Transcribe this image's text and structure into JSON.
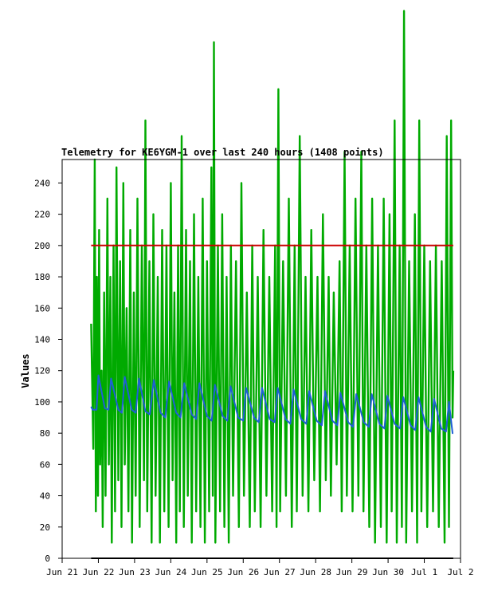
{
  "chart_data": {
    "type": "line",
    "title": "Telemetry for KE6YGM-1 over last 240 hours (1408 points)",
    "ylabel": "Values",
    "xlabel": "",
    "ylim": [
      0,
      255
    ],
    "yticks": [
      0,
      20,
      40,
      60,
      80,
      100,
      120,
      140,
      160,
      180,
      200,
      220,
      240
    ],
    "xlim": [
      0,
      11
    ],
    "xticks": [
      {
        "label": "Jun 21",
        "x": 0
      },
      {
        "label": "Jun 22",
        "x": 1
      },
      {
        "label": "Jun 23",
        "x": 2
      },
      {
        "label": "Jun 24",
        "x": 3
      },
      {
        "label": "Jun 25",
        "x": 4
      },
      {
        "label": "Jun 26",
        "x": 5
      },
      {
        "label": "Jun 27",
        "x": 6
      },
      {
        "label": "Jun 28",
        "x": 7
      },
      {
        "label": "Jun 29",
        "x": 8
      },
      {
        "label": "Jun 30",
        "x": 9
      },
      {
        "label": "Jul 1",
        "x": 10
      },
      {
        "label": "Jul 2",
        "x": 11
      }
    ],
    "grid": false,
    "series": [
      {
        "name": "",
        "color": "#00aa00",
        "style": "noisy",
        "values": [
          [
            0.8,
            150
          ],
          [
            0.86,
            70
          ],
          [
            0.9,
            255
          ],
          [
            0.93,
            30
          ],
          [
            0.96,
            180
          ],
          [
            0.99,
            40
          ],
          [
            1.02,
            210
          ],
          [
            1.05,
            60
          ],
          [
            1.09,
            120
          ],
          [
            1.12,
            20
          ],
          [
            1.16,
            170
          ],
          [
            1.2,
            40
          ],
          [
            1.25,
            230
          ],
          [
            1.29,
            60
          ],
          [
            1.33,
            180
          ],
          [
            1.37,
            10
          ],
          [
            1.42,
            200
          ],
          [
            1.46,
            30
          ],
          [
            1.5,
            250
          ],
          [
            1.55,
            50
          ],
          [
            1.6,
            190
          ],
          [
            1.64,
            20
          ],
          [
            1.69,
            240
          ],
          [
            1.73,
            60
          ],
          [
            1.78,
            160
          ],
          [
            1.83,
            30
          ],
          [
            1.88,
            210
          ],
          [
            1.93,
            10
          ],
          [
            1.98,
            170
          ],
          [
            2.03,
            40
          ],
          [
            2.08,
            230
          ],
          [
            2.14,
            20
          ],
          [
            2.2,
            200
          ],
          [
            2.26,
            50
          ],
          [
            2.3,
            280
          ],
          [
            2.35,
            30
          ],
          [
            2.41,
            190
          ],
          [
            2.47,
            10
          ],
          [
            2.52,
            220
          ],
          [
            2.58,
            40
          ],
          [
            2.64,
            180
          ],
          [
            2.7,
            10
          ],
          [
            2.76,
            210
          ],
          [
            2.82,
            30
          ],
          [
            2.88,
            200
          ],
          [
            2.94,
            20
          ],
          [
            3.0,
            240
          ],
          [
            3.05,
            50
          ],
          [
            3.1,
            170
          ],
          [
            3.15,
            10
          ],
          [
            3.2,
            200
          ],
          [
            3.25,
            30
          ],
          [
            3.3,
            270
          ],
          [
            3.36,
            20
          ],
          [
            3.42,
            210
          ],
          [
            3.47,
            40
          ],
          [
            3.53,
            190
          ],
          [
            3.58,
            10
          ],
          [
            3.64,
            220
          ],
          [
            3.7,
            30
          ],
          [
            3.76,
            180
          ],
          [
            3.82,
            20
          ],
          [
            3.88,
            230
          ],
          [
            3.94,
            10
          ],
          [
            4.0,
            190
          ],
          [
            4.06,
            30
          ],
          [
            4.12,
            250
          ],
          [
            4.16,
            40
          ],
          [
            4.19,
            330
          ],
          [
            4.23,
            10
          ],
          [
            4.3,
            200
          ],
          [
            4.36,
            30
          ],
          [
            4.42,
            220
          ],
          [
            4.48,
            20
          ],
          [
            4.54,
            180
          ],
          [
            4.6,
            10
          ],
          [
            4.66,
            200
          ],
          [
            4.72,
            40
          ],
          [
            4.8,
            190
          ],
          [
            4.88,
            20
          ],
          [
            4.95,
            240
          ],
          [
            5.02,
            40
          ],
          [
            5.1,
            170
          ],
          [
            5.18,
            20
          ],
          [
            5.25,
            200
          ],
          [
            5.32,
            30
          ],
          [
            5.4,
            180
          ],
          [
            5.48,
            20
          ],
          [
            5.56,
            210
          ],
          [
            5.64,
            40
          ],
          [
            5.72,
            180
          ],
          [
            5.8,
            30
          ],
          [
            5.88,
            200
          ],
          [
            5.92,
            20
          ],
          [
            5.97,
            300
          ],
          [
            6.02,
            30
          ],
          [
            6.1,
            190
          ],
          [
            6.18,
            40
          ],
          [
            6.26,
            230
          ],
          [
            6.34,
            20
          ],
          [
            6.42,
            200
          ],
          [
            6.48,
            30
          ],
          [
            6.56,
            270
          ],
          [
            6.64,
            40
          ],
          [
            6.72,
            180
          ],
          [
            6.8,
            30
          ],
          [
            6.88,
            210
          ],
          [
            6.96,
            50
          ],
          [
            7.05,
            180
          ],
          [
            7.12,
            30
          ],
          [
            7.2,
            220
          ],
          [
            7.28,
            50
          ],
          [
            7.36,
            180
          ],
          [
            7.42,
            40
          ],
          [
            7.5,
            170
          ],
          [
            7.58,
            60
          ],
          [
            7.66,
            190
          ],
          [
            7.72,
            30
          ],
          [
            7.8,
            260
          ],
          [
            7.86,
            40
          ],
          [
            7.94,
            200
          ],
          [
            8.02,
            30
          ],
          [
            8.1,
            230
          ],
          [
            8.18,
            40
          ],
          [
            8.26,
            260
          ],
          [
            8.32,
            30
          ],
          [
            8.4,
            200
          ],
          [
            8.48,
            20
          ],
          [
            8.56,
            230
          ],
          [
            8.64,
            10
          ],
          [
            8.72,
            200
          ],
          [
            8.8,
            20
          ],
          [
            8.88,
            230
          ],
          [
            8.96,
            10
          ],
          [
            9.04,
            220
          ],
          [
            9.1,
            30
          ],
          [
            9.18,
            280
          ],
          [
            9.24,
            10
          ],
          [
            9.32,
            200
          ],
          [
            9.38,
            20
          ],
          [
            9.44,
            350
          ],
          [
            9.5,
            10
          ],
          [
            9.58,
            190
          ],
          [
            9.66,
            30
          ],
          [
            9.74,
            220
          ],
          [
            9.8,
            10
          ],
          [
            9.86,
            280
          ],
          [
            9.92,
            30
          ],
          [
            10.0,
            200
          ],
          [
            10.08,
            20
          ],
          [
            10.16,
            190
          ],
          [
            10.24,
            30
          ],
          [
            10.32,
            200
          ],
          [
            10.4,
            20
          ],
          [
            10.48,
            190
          ],
          [
            10.56,
            10
          ],
          [
            10.62,
            270
          ],
          [
            10.68,
            20
          ],
          [
            10.74,
            280
          ],
          [
            10.78,
            90
          ],
          [
            10.8,
            120
          ]
        ]
      },
      {
        "name": "",
        "color": "#1f5fd6",
        "style": "sawtooth",
        "values": [
          [
            0.8,
            97
          ],
          [
            0.84,
            95
          ],
          [
            0.95,
            95
          ],
          [
            1.0,
            117
          ],
          [
            1.18,
            96
          ],
          [
            1.28,
            95
          ],
          [
            1.35,
            115
          ],
          [
            1.55,
            95
          ],
          [
            1.65,
            93
          ],
          [
            1.73,
            116
          ],
          [
            1.92,
            95
          ],
          [
            2.03,
            93
          ],
          [
            2.12,
            115
          ],
          [
            2.3,
            94
          ],
          [
            2.42,
            92
          ],
          [
            2.53,
            114
          ],
          [
            2.72,
            93
          ],
          [
            2.85,
            90
          ],
          [
            2.95,
            113
          ],
          [
            3.15,
            93
          ],
          [
            3.27,
            90
          ],
          [
            3.37,
            112
          ],
          [
            3.58,
            92
          ],
          [
            3.7,
            89
          ],
          [
            3.79,
            112
          ],
          [
            4.0,
            91
          ],
          [
            4.13,
            88
          ],
          [
            4.22,
            111
          ],
          [
            4.43,
            91
          ],
          [
            4.56,
            88
          ],
          [
            4.65,
            110
          ],
          [
            4.86,
            90
          ],
          [
            5.0,
            88
          ],
          [
            5.08,
            109
          ],
          [
            5.3,
            90
          ],
          [
            5.43,
            87
          ],
          [
            5.52,
            109
          ],
          [
            5.73,
            89
          ],
          [
            5.87,
            87
          ],
          [
            5.95,
            109
          ],
          [
            6.17,
            89
          ],
          [
            6.3,
            86
          ],
          [
            6.39,
            108
          ],
          [
            6.6,
            89
          ],
          [
            6.74,
            86
          ],
          [
            6.82,
            107
          ],
          [
            7.03,
            88
          ],
          [
            7.17,
            85
          ],
          [
            7.26,
            107
          ],
          [
            7.46,
            88
          ],
          [
            7.6,
            85
          ],
          [
            7.68,
            106
          ],
          [
            7.9,
            87
          ],
          [
            8.03,
            84
          ],
          [
            8.12,
            105
          ],
          [
            8.33,
            87
          ],
          [
            8.47,
            84
          ],
          [
            8.55,
            105
          ],
          [
            8.76,
            86
          ],
          [
            8.9,
            83
          ],
          [
            8.98,
            104
          ],
          [
            9.18,
            86
          ],
          [
            9.33,
            83
          ],
          [
            9.42,
            103
          ],
          [
            9.62,
            85
          ],
          [
            9.75,
            82
          ],
          [
            9.84,
            103
          ],
          [
            10.05,
            84
          ],
          [
            10.18,
            81
          ],
          [
            10.27,
            102
          ],
          [
            10.47,
            83
          ],
          [
            10.6,
            81
          ],
          [
            10.68,
            100
          ],
          [
            10.78,
            80
          ],
          [
            10.8,
            80
          ]
        ]
      },
      {
        "name": "",
        "color": "#cc0000",
        "style": "line",
        "values": [
          [
            0.8,
            200
          ],
          [
            10.8,
            200
          ]
        ]
      },
      {
        "name": "",
        "color": "#000000",
        "style": "line",
        "values": [
          [
            0.8,
            0
          ],
          [
            10.8,
            0
          ]
        ]
      }
    ]
  }
}
